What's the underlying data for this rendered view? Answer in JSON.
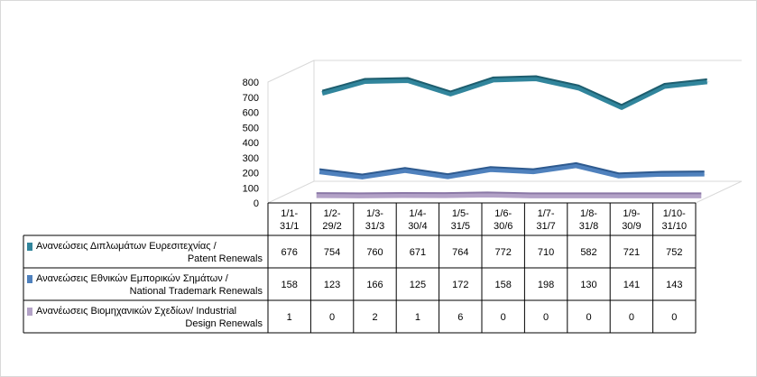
{
  "chart_data": {
    "type": "line",
    "title": "",
    "xlabel": "",
    "ylabel": "",
    "ylim": [
      0,
      800
    ],
    "yticks": [
      "0",
      "100",
      "200",
      "300",
      "400",
      "500",
      "600",
      "700",
      "800"
    ],
    "categories": [
      [
        "1/1-",
        "31/1"
      ],
      [
        "1/2-",
        "29/2"
      ],
      [
        "1/3-",
        "31/3"
      ],
      [
        "1/4-",
        "30/4"
      ],
      [
        "1/5-",
        "31/5"
      ],
      [
        "1/6-",
        "30/6"
      ],
      [
        "1/7-",
        "31/7"
      ],
      [
        "1/8-",
        "31/8"
      ],
      [
        "1/9-",
        "30/9"
      ],
      [
        "1/10-",
        "31/10"
      ]
    ],
    "series": [
      {
        "name": [
          "Ανανεώσεις Διπλωμάτων Ευρεσιτεχνίας  /",
          "Patent Renewals"
        ],
        "color": "#31859c",
        "dark": "#1d5d6e",
        "values": [
          676,
          754,
          760,
          671,
          764,
          772,
          710,
          582,
          721,
          752
        ]
      },
      {
        "name": [
          "Ανανεώσεις Εθνικών Εμπορικών Σημάτων /",
          "National Trademark Renewals"
        ],
        "color": "#4f81bd",
        "dark": "#2e5a8f",
        "values": [
          158,
          123,
          166,
          125,
          172,
          158,
          198,
          130,
          141,
          143
        ]
      },
      {
        "name": [
          "Ανανέωσεις Βιομηχανικών Σχεδίων/ Industrial",
          "Design Renewals"
        ],
        "color": "#b3a2c7",
        "dark": "#8a78a6",
        "values": [
          1,
          0,
          2,
          1,
          6,
          0,
          0,
          0,
          0,
          0
        ]
      }
    ],
    "legend": "table-left",
    "grid": false
  }
}
